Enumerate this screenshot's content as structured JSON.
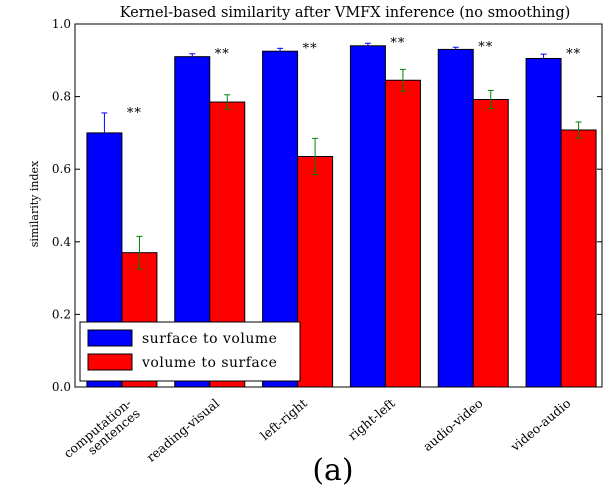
{
  "chart_data": {
    "type": "bar",
    "title": "Kernel-based similarity after VMFX inference (no smoothing)",
    "ylabel": "similarity index",
    "xlabel": "",
    "ylim": [
      0,
      1.0
    ],
    "yticks": [
      "0.0",
      "0.2",
      "0.4",
      "0.6",
      "0.8",
      "1.0"
    ],
    "categories": [
      "computation-\nsentences",
      "reading-visual",
      "left-right",
      "right-left",
      "audio-video",
      "video-audio"
    ],
    "series": [
      {
        "name": "surface to volume",
        "color": "#0000ff",
        "errorColor": "#0000ff",
        "values": [
          0.7,
          0.91,
          0.925,
          0.94,
          0.93,
          0.905
        ],
        "errors": [
          0.055,
          0.008,
          0.008,
          0.007,
          0.006,
          0.012
        ]
      },
      {
        "name": "volume to surface",
        "color": "#ff0000",
        "errorColor": "#008000",
        "values": [
          0.37,
          0.785,
          0.635,
          0.845,
          0.792,
          0.708
        ],
        "errors": [
          0.045,
          0.02,
          0.05,
          0.03,
          0.025,
          0.022
        ]
      }
    ],
    "significance": [
      "**",
      "**",
      "**",
      "**",
      "**",
      "**"
    ],
    "legend": "bottom-left",
    "panel_label": "(a)"
  }
}
